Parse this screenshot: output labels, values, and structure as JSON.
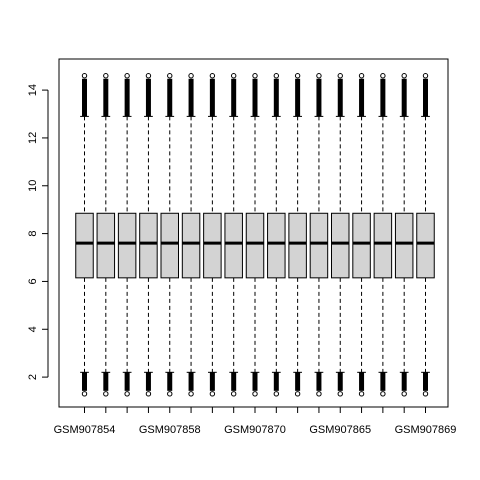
{
  "chart_data": {
    "type": "box",
    "title": "",
    "xlabel": "",
    "ylabel": "",
    "ylim": [
      0.75,
      15.3
    ],
    "yticks": [
      2,
      4,
      6,
      8,
      10,
      12,
      14
    ],
    "xtick_labels_shown": [
      {
        "index": 0,
        "label": "GSM907854"
      },
      {
        "index": 4,
        "label": "GSM907858"
      },
      {
        "index": 8,
        "label": "GSM907870"
      },
      {
        "index": 12,
        "label": "GSM907865"
      },
      {
        "index": 16,
        "label": "GSM907869"
      }
    ],
    "box_count": 17,
    "boxes": [
      {
        "min": 1.3,
        "q1": 6.15,
        "median": 7.6,
        "q3": 8.85,
        "max": 14.6
      },
      {
        "min": 1.3,
        "q1": 6.15,
        "median": 7.6,
        "q3": 8.85,
        "max": 14.6
      },
      {
        "min": 1.3,
        "q1": 6.15,
        "median": 7.6,
        "q3": 8.85,
        "max": 14.6
      },
      {
        "min": 1.3,
        "q1": 6.15,
        "median": 7.6,
        "q3": 8.85,
        "max": 14.6
      },
      {
        "min": 1.3,
        "q1": 6.15,
        "median": 7.6,
        "q3": 8.85,
        "max": 14.6
      },
      {
        "min": 1.3,
        "q1": 6.15,
        "median": 7.6,
        "q3": 8.85,
        "max": 14.6
      },
      {
        "min": 1.3,
        "q1": 6.15,
        "median": 7.6,
        "q3": 8.85,
        "max": 14.6
      },
      {
        "min": 1.3,
        "q1": 6.15,
        "median": 7.6,
        "q3": 8.85,
        "max": 14.6
      },
      {
        "min": 1.3,
        "q1": 6.15,
        "median": 7.6,
        "q3": 8.85,
        "max": 14.6
      },
      {
        "min": 1.3,
        "q1": 6.15,
        "median": 7.6,
        "q3": 8.85,
        "max": 14.6
      },
      {
        "min": 1.3,
        "q1": 6.15,
        "median": 7.6,
        "q3": 8.85,
        "max": 14.6
      },
      {
        "min": 1.3,
        "q1": 6.15,
        "median": 7.6,
        "q3": 8.85,
        "max": 14.6
      },
      {
        "min": 1.3,
        "q1": 6.15,
        "median": 7.6,
        "q3": 8.85,
        "max": 14.6
      },
      {
        "min": 1.3,
        "q1": 6.15,
        "median": 7.6,
        "q3": 8.85,
        "max": 14.6
      },
      {
        "min": 1.3,
        "q1": 6.15,
        "median": 7.6,
        "q3": 8.85,
        "max": 14.6
      },
      {
        "min": 1.3,
        "q1": 6.15,
        "median": 7.6,
        "q3": 8.85,
        "max": 14.6
      },
      {
        "min": 1.3,
        "q1": 6.15,
        "median": 7.6,
        "q3": 8.85,
        "max": 14.6
      }
    ],
    "whisker_low": 2.2,
    "whisker_high": 12.9,
    "outlier_range_low": [
      1.3,
      2.2
    ],
    "outlier_range_high": [
      12.9,
      14.6
    ],
    "box_fill": "#d3d3d3",
    "grid": false,
    "legend": "none"
  }
}
